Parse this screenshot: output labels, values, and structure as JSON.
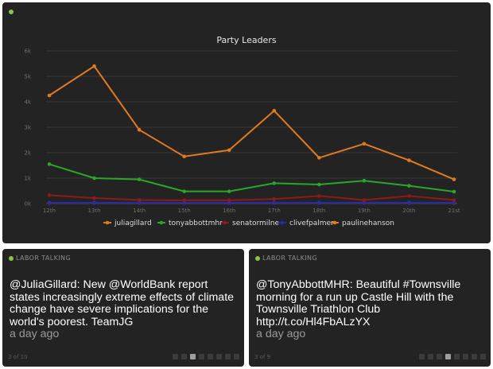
{
  "colors": {
    "background": "#232323",
    "status_dot": "#8bc34a",
    "series": [
      "#e07a1f",
      "#2aa62a",
      "#8b1a1a",
      "#2a2aa8",
      "#e07a1f"
    ]
  },
  "chart_panel": {
    "chart_data": {
      "type": "line",
      "title": "Party Leaders",
      "xlabel": "",
      "ylabel": "",
      "categories": [
        "12th",
        "13th",
        "14th",
        "15th",
        "16th",
        "17th",
        "18th",
        "19th",
        "20th",
        "21st"
      ],
      "y_ticks": [
        "0k",
        "1k",
        "2k",
        "3k",
        "4k",
        "5k",
        "6k"
      ],
      "ylim": [
        0,
        6000
      ],
      "grid": true,
      "legend_position": "bottom",
      "series": [
        {
          "name": "juliagillard",
          "values": [
            4250,
            5400,
            2900,
            1850,
            2100,
            3650,
            1800,
            2350,
            1700,
            950
          ]
        },
        {
          "name": "tonyabbottmhr",
          "values": [
            1550,
            1000,
            950,
            480,
            480,
            800,
            750,
            900,
            700,
            470
          ]
        },
        {
          "name": "senatormilne",
          "values": [
            330,
            220,
            140,
            130,
            130,
            180,
            300,
            140,
            300,
            140
          ]
        },
        {
          "name": "clivefpalmer",
          "values": [
            30,
            30,
            30,
            30,
            30,
            30,
            30,
            30,
            30,
            30
          ]
        },
        {
          "name": "paulinehanson",
          "values": [
            30,
            30,
            30,
            30,
            30,
            30,
            30,
            30,
            30,
            30
          ]
        }
      ]
    }
  },
  "tweet_left": {
    "header": "LABOR TALKING",
    "handle": "@JuliaGillard",
    "body": ": New @WorldBank report states increasingly extreme effects of climate change have severe implications for the world's poorest. TeamJG",
    "time": "a day ago",
    "counter": "3 of 10",
    "pager_total": 8,
    "pager_active": 2
  },
  "tweet_right": {
    "header": "LABOR TALKING",
    "handle": "@TonyAbbottMHR",
    "body": ": Beautiful #Townsville morning for a run up Castle Hill with the Townsville Triathlon Club http://t.co/Hl4FbALzYX",
    "time": "a day ago",
    "counter": "3 of 9",
    "pager_total": 8,
    "pager_active": 3
  }
}
